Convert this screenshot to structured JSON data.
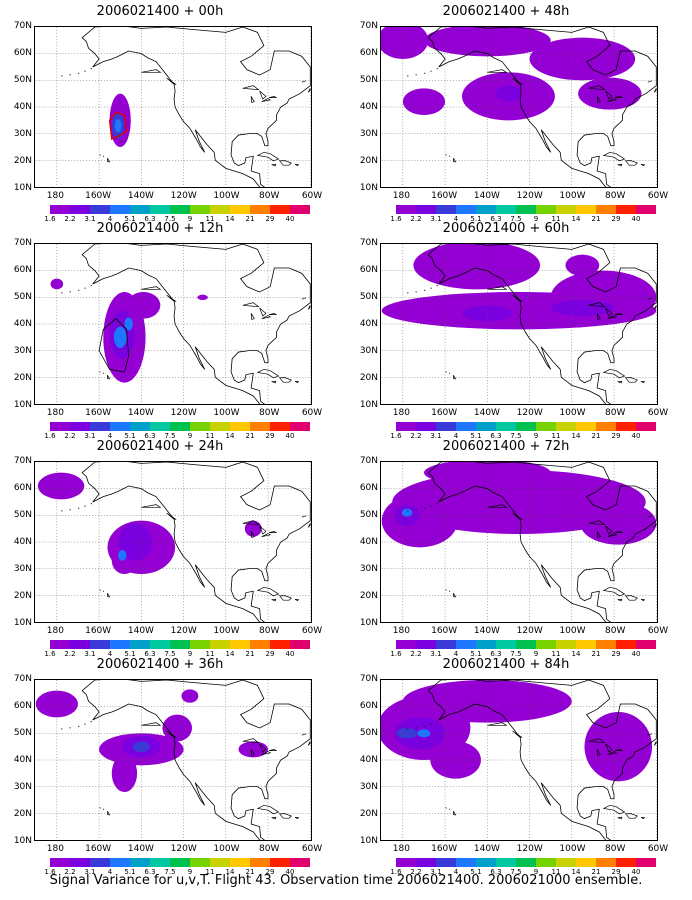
{
  "figure": {
    "caption": "Signal Variance for u,v,T. Flight 43. Observation time 2006021400. 2006021000 ensemble.",
    "lat_labels": [
      "70N",
      "60N",
      "50N",
      "40N",
      "30N",
      "20N",
      "10N"
    ],
    "lon_labels": [
      "180",
      "160W",
      "140W",
      "120W",
      "100W",
      "80W",
      "60W"
    ],
    "map_extent": {
      "lon_min": -190,
      "lon_max": -60,
      "lat_min": 10,
      "lat_max": 70
    },
    "grid": "dotted, every 20 degrees longitude and 10 degrees latitude",
    "contour_levels": [
      "1.6",
      "2.2",
      "3.1",
      "4",
      "5.1",
      "6.3",
      "7.5",
      "9",
      "11",
      "14",
      "21",
      "29",
      "40"
    ],
    "colors": [
      "#9400d3",
      "#7a00e0",
      "#3a3ad8",
      "#1e78ff",
      "#00a0c8",
      "#00c8a0",
      "#00c050",
      "#78d200",
      "#c8d200",
      "#ffc800",
      "#ff8000",
      "#ff2000",
      "#e0006e"
    ]
  },
  "chart_data": [
    {
      "type": "heatmap",
      "title": "2006021400 + 00h",
      "panel": "left-1",
      "xlabel": "",
      "ylabel": "",
      "xlim": [
        -190,
        -60
      ],
      "ylim": [
        10,
        70
      ],
      "features": [
        {
          "lon": -150,
          "lat": 35,
          "rlon": 5,
          "rlat": 10,
          "level": "1.6"
        },
        {
          "lon": -151,
          "lat": 33,
          "rlon": 3,
          "rlat": 5,
          "level": "3.1"
        },
        {
          "lon": -151,
          "lat": 33,
          "rlon": 1.6,
          "rlat": 2.5,
          "level": "4"
        }
      ],
      "observation_track": [
        [
          -154,
          28
        ],
        [
          -155,
          35
        ],
        [
          -152,
          38
        ],
        [
          -148,
          37
        ],
        [
          -147,
          31
        ],
        [
          -151,
          29
        ],
        [
          -154,
          28
        ]
      ]
    },
    {
      "type": "heatmap",
      "title": "2006021400 + 12h",
      "panel": "left-2",
      "xlabel": "",
      "ylabel": "",
      "xlim": [
        -190,
        -60
      ],
      "ylim": [
        10,
        70
      ],
      "features": [
        {
          "lon": -148,
          "lat": 35,
          "rlon": 10,
          "rlat": 17,
          "level": "1.6"
        },
        {
          "lon": -139,
          "lat": 47,
          "rlon": 8,
          "rlat": 5,
          "level": "1.6"
        },
        {
          "lon": -180,
          "lat": 55,
          "rlon": 3,
          "rlat": 2,
          "level": "1.6"
        },
        {
          "lon": -111,
          "lat": 50,
          "rlon": 2.5,
          "rlat": 1,
          "level": "1.6"
        },
        {
          "lon": -149,
          "lat": 36,
          "rlon": 6,
          "rlat": 9,
          "level": "2.2"
        },
        {
          "lon": -150,
          "lat": 35,
          "rlon": 3,
          "rlat": 4,
          "level": "4"
        },
        {
          "lon": -146,
          "lat": 40,
          "rlon": 2,
          "rlat": 2.5,
          "level": "4"
        }
      ],
      "observation_track": [
        [
          -147,
          38
        ],
        [
          -152,
          42
        ],
        [
          -158,
          38
        ],
        [
          -160,
          30
        ],
        [
          -155,
          23
        ],
        [
          -148,
          22
        ],
        [
          -146,
          28
        ],
        [
          -147,
          38
        ]
      ]
    },
    {
      "type": "heatmap",
      "title": "2006021400 + 24h",
      "panel": "left-3",
      "xlabel": "",
      "ylabel": "",
      "xlim": [
        -190,
        -60
      ],
      "ylim": [
        10,
        70
      ],
      "features": [
        {
          "lon": -140,
          "lat": 38,
          "rlon": 16,
          "rlat": 10,
          "level": "1.6"
        },
        {
          "lon": -148,
          "lat": 33,
          "rlon": 6,
          "rlat": 5,
          "level": "1.6"
        },
        {
          "lon": -178,
          "lat": 61,
          "rlon": 11,
          "rlat": 5,
          "level": "1.6"
        },
        {
          "lon": -87,
          "lat": 45,
          "rlon": 4,
          "rlat": 3,
          "level": "1.6"
        },
        {
          "lon": -143,
          "lat": 40,
          "rlon": 8,
          "rlat": 7,
          "level": "2.2"
        },
        {
          "lon": -149,
          "lat": 35,
          "rlon": 2,
          "rlat": 2,
          "level": "4"
        }
      ]
    },
    {
      "type": "heatmap",
      "title": "2006021400 + 36h",
      "panel": "left-4",
      "xlabel": "",
      "ylabel": "",
      "xlim": [
        -190,
        -60
      ],
      "ylim": [
        10,
        70
      ],
      "features": [
        {
          "lon": -140,
          "lat": 44,
          "rlon": 20,
          "rlat": 6,
          "level": "1.6"
        },
        {
          "lon": -148,
          "lat": 35,
          "rlon": 6,
          "rlat": 7,
          "level": "1.6"
        },
        {
          "lon": -123,
          "lat": 52,
          "rlon": 7,
          "rlat": 5,
          "level": "1.6"
        },
        {
          "lon": -180,
          "lat": 61,
          "rlon": 10,
          "rlat": 5,
          "level": "1.6"
        },
        {
          "lon": -117,
          "lat": 64,
          "rlon": 4,
          "rlat": 2.5,
          "level": "1.6"
        },
        {
          "lon": -87,
          "lat": 44,
          "rlon": 7,
          "rlat": 3,
          "level": "1.6"
        },
        {
          "lon": -140,
          "lat": 45,
          "rlon": 9,
          "rlat": 4,
          "level": "2.2"
        },
        {
          "lon": -140,
          "lat": 45,
          "rlon": 4,
          "rlat": 2,
          "level": "3.1"
        }
      ]
    },
    {
      "type": "heatmap",
      "title": "2006021400 + 48h",
      "panel": "right-1",
      "xlabel": "",
      "ylabel": "",
      "xlim": [
        -190,
        -60
      ],
      "ylim": [
        10,
        70
      ],
      "features": [
        {
          "lon": -180,
          "lat": 65,
          "rlon": 12,
          "rlat": 7,
          "level": "1.6"
        },
        {
          "lon": -140,
          "lat": 65,
          "rlon": 30,
          "rlat": 6,
          "level": "1.6"
        },
        {
          "lon": -130,
          "lat": 44,
          "rlon": 22,
          "rlat": 9,
          "level": "1.6"
        },
        {
          "lon": -170,
          "lat": 42,
          "rlon": 10,
          "rlat": 5,
          "level": "1.6"
        },
        {
          "lon": -95,
          "lat": 58,
          "rlon": 25,
          "rlat": 8,
          "level": "1.6"
        },
        {
          "lon": -82,
          "lat": 45,
          "rlon": 15,
          "rlat": 6,
          "level": "1.6"
        },
        {
          "lon": -130,
          "lat": 45,
          "rlon": 6,
          "rlat": 3,
          "level": "2.2"
        }
      ]
    },
    {
      "type": "heatmap",
      "title": "2006021400 + 60h",
      "panel": "right-2",
      "xlabel": "",
      "ylabel": "",
      "xlim": [
        -190,
        -60
      ],
      "ylim": [
        10,
        70
      ],
      "features": [
        {
          "lon": -125,
          "lat": 45,
          "rlon": 65,
          "rlat": 7,
          "level": "1.6"
        },
        {
          "lon": -145,
          "lat": 62,
          "rlon": 30,
          "rlat": 9,
          "level": "1.6"
        },
        {
          "lon": -85,
          "lat": 50,
          "rlon": 25,
          "rlat": 10,
          "level": "1.6"
        },
        {
          "lon": -95,
          "lat": 62,
          "rlon": 8,
          "rlat": 4,
          "level": "1.6"
        },
        {
          "lon": -140,
          "lat": 44,
          "rlon": 12,
          "rlat": 3,
          "level": "2.2"
        },
        {
          "lon": -95,
          "lat": 46,
          "rlon": 15,
          "rlat": 3,
          "level": "2.2"
        }
      ]
    },
    {
      "type": "heatmap",
      "title": "2006021400 + 72h",
      "panel": "right-3",
      "xlabel": "",
      "ylabel": "",
      "xlim": [
        -190,
        -60
      ],
      "ylim": [
        10,
        70
      ],
      "features": [
        {
          "lon": -125,
          "lat": 55,
          "rlon": 60,
          "rlat": 12,
          "level": "1.6"
        },
        {
          "lon": -172,
          "lat": 48,
          "rlon": 18,
          "rlat": 10,
          "level": "1.6"
        },
        {
          "lon": -140,
          "lat": 66,
          "rlon": 30,
          "rlat": 5,
          "level": "1.6"
        },
        {
          "lon": -78,
          "lat": 47,
          "rlon": 18,
          "rlat": 8,
          "level": "1.6"
        },
        {
          "lon": -178,
          "lat": 50,
          "rlon": 6,
          "rlat": 4,
          "level": "2.2"
        },
        {
          "lon": -178,
          "lat": 51,
          "rlon": 2.5,
          "rlat": 1.5,
          "level": "4"
        }
      ]
    },
    {
      "type": "heatmap",
      "title": "2006021400 + 84h",
      "panel": "right-4",
      "xlabel": "",
      "ylabel": "",
      "xlim": [
        -190,
        -60
      ],
      "ylim": [
        10,
        70
      ],
      "features": [
        {
          "lon": -170,
          "lat": 52,
          "rlon": 22,
          "rlat": 12,
          "level": "1.6"
        },
        {
          "lon": -140,
          "lat": 62,
          "rlon": 40,
          "rlat": 8,
          "level": "1.6"
        },
        {
          "lon": -155,
          "lat": 40,
          "rlon": 12,
          "rlat": 7,
          "level": "1.6"
        },
        {
          "lon": -78,
          "lat": 45,
          "rlon": 16,
          "rlat": 13,
          "level": "1.6"
        },
        {
          "lon": -172,
          "lat": 50,
          "rlon": 12,
          "rlat": 6,
          "level": "2.2"
        },
        {
          "lon": -178,
          "lat": 50,
          "rlon": 5,
          "rlat": 2,
          "level": "3.1"
        },
        {
          "lon": -170,
          "lat": 50,
          "rlon": 3,
          "rlat": 1.5,
          "level": "4"
        }
      ]
    }
  ]
}
